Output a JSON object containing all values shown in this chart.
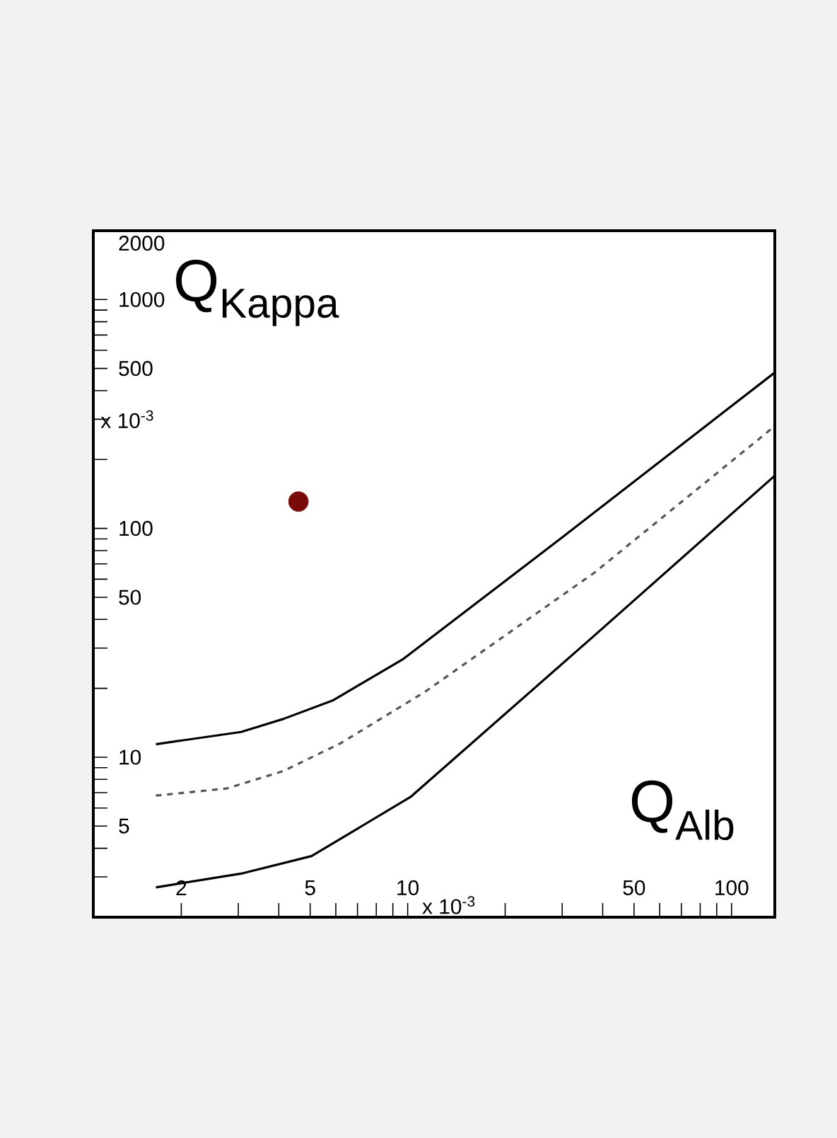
{
  "chart_data": {
    "type": "line",
    "xlabel": "Q$_{Alb}$",
    "ylabel": "Q$_{Kappa}$",
    "log": "xy",
    "xlim": [
      1.07,
      136
    ],
    "ylim": [
      2,
      2000
    ],
    "xticks": [
      2,
      {
        "value": 3,
        "label": null
      },
      {
        "value": 4,
        "label": null
      },
      5,
      {
        "value": 6,
        "label": null
      },
      {
        "value": 7,
        "label": null
      },
      {
        "value": 8,
        "label": null
      },
      {
        "value": 9,
        "label": null
      },
      10,
      {
        "value": 20,
        "label": null
      },
      {
        "value": 30,
        "label": null
      },
      {
        "value": 40,
        "label": null
      },
      50,
      {
        "value": 60,
        "label": null
      },
      {
        "value": 70,
        "label": null
      },
      {
        "value": 80,
        "label": null
      },
      {
        "value": 90,
        "label": null
      },
      100
    ],
    "yticks": [
      {
        "value": 3,
        "label": null
      },
      {
        "value": 4,
        "label": null
      },
      5,
      {
        "value": 6,
        "label": null
      },
      {
        "value": 7,
        "label": null
      },
      {
        "value": 8,
        "label": null
      },
      {
        "value": 9,
        "label": null
      },
      10,
      {
        "value": 20,
        "label": null
      },
      {
        "value": 30,
        "label": null
      },
      {
        "value": 40,
        "label": null
      },
      50,
      {
        "value": 60,
        "label": null
      },
      {
        "value": 70,
        "label": null
      },
      {
        "value": 80,
        "label": null
      },
      {
        "value": 90,
        "label": null
      },
      100,
      {
        "value": 200,
        "label": null
      },
      {
        "value": 300,
        "label": null
      },
      {
        "value": 400,
        "label": null
      },
      500,
      {
        "value": 600,
        "label": null
      },
      {
        "value": 700,
        "label": null
      },
      {
        "value": 800,
        "label": null
      },
      {
        "value": 900,
        "label": null
      },
      1000,
      2000
    ],
    "grid": false,
    "marker": "none",
    "annotations": [
      "x 10$^{-3}$",
      "x 10$^{-3}$"
    ],
    "series": [
      {
        "color": "#000000",
        "line_style": "solid",
        "x": [
          1.67,
          3.06,
          4.13,
          5.87,
          9.7,
          30.8,
          136
        ],
        "values": [
          11.4,
          12.9,
          14.7,
          17.7,
          26.9,
          94,
          480
        ]
      },
      {
        "color": "#555555",
        "line_style": "dashed",
        "x": [
          1.67,
          2.76,
          4.13,
          6.2,
          11.3,
          37.7,
          136
        ],
        "values": [
          6.8,
          7.3,
          8.7,
          11.5,
          19.3,
          64,
          280
        ]
      },
      {
        "color": "#000000",
        "line_style": "solid",
        "x": [
          1.67,
          3.06,
          5.05,
          10.2,
          37.7,
          136
        ],
        "values": [
          2.7,
          3.1,
          3.7,
          6.7,
          34,
          170
        ]
      },
      {
        "type": "scatter",
        "color": "#7a0a0a",
        "marker": "circle",
        "x": [
          4.6
        ],
        "values": [
          131
        ]
      }
    ]
  }
}
